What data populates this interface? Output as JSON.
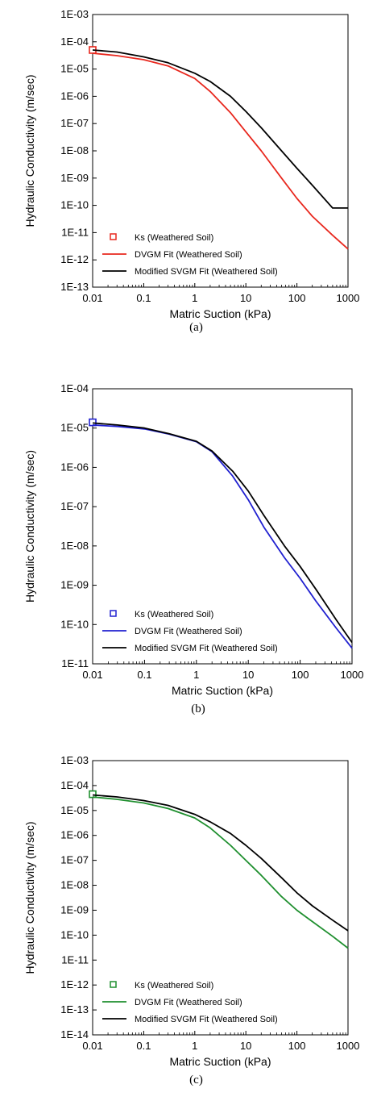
{
  "chart_data": [
    {
      "type": "line",
      "panel_label": "(a)",
      "xlabel": "Matric Suction (kPa)",
      "ylabel": "Hydraulic Conductivity (m/sec)",
      "xscale": "log",
      "yscale": "log",
      "xlim": [
        0.01,
        1000
      ],
      "ylim": [
        1e-13,
        0.001
      ],
      "x_ticks": [
        0.01,
        0.1,
        1,
        10,
        100,
        1000
      ],
      "x_tick_labels": [
        "0.01",
        "0.1",
        "1",
        "10",
        "100",
        "1000"
      ],
      "y_ticks": [
        1e-13,
        1e-12,
        1e-11,
        1e-10,
        1e-09,
        1e-08,
        1e-07,
        1e-06,
        1e-05,
        0.0001,
        0.001
      ],
      "y_tick_labels": [
        "1E-13",
        "1E-12",
        "1E-11",
        "1E-10",
        "1E-09",
        "1E-08",
        "1E-07",
        "1E-06",
        "1E-05",
        "1E-04",
        "1E-03"
      ],
      "legend_position": "bottom-left",
      "series": [
        {
          "name": "Ks (Weathered Soil)",
          "kind": "marker",
          "color": "#e8281e",
          "x": [
            0.01
          ],
          "y": [
            5e-05
          ]
        },
        {
          "name": "DVGM Fit (Weathered Soil)",
          "kind": "line",
          "color": "#e8281e",
          "x": [
            0.01,
            0.03,
            0.1,
            0.3,
            1,
            2,
            5,
            10,
            20,
            50,
            100,
            200,
            500,
            1000
          ],
          "y": [
            3.8e-05,
            3.1e-05,
            2.2e-05,
            1.3e-05,
            4.5e-06,
            1.5e-06,
            2.5e-07,
            5e-08,
            1e-08,
            1e-09,
            1.8e-10,
            4e-11,
            8e-12,
            2.5e-12
          ]
        },
        {
          "name": "Modified SVGM Fit (Weathered Soil)",
          "kind": "line",
          "color": "#000000",
          "x": [
            0.01,
            0.03,
            0.1,
            0.3,
            1,
            2,
            5,
            10,
            20,
            50,
            100,
            200,
            500,
            1000
          ],
          "y": [
            5e-05,
            4.2e-05,
            2.8e-05,
            1.7e-05,
            7e-06,
            3.5e-06,
            1e-06,
            2.8e-07,
            7e-08,
            1e-08,
            2.3e-09,
            5.5e-10,
            8e-11,
            8e-11
          ]
        }
      ]
    },
    {
      "type": "line",
      "panel_label": "(b)",
      "xlabel": "Matric Suction (kPa)",
      "ylabel": "Hydraulic Conductivity (m/sec)",
      "xscale": "log",
      "yscale": "log",
      "xlim": [
        0.01,
        1000
      ],
      "ylim": [
        1e-11,
        0.0001
      ],
      "x_ticks": [
        0.01,
        0.1,
        1,
        10,
        100,
        1000
      ],
      "x_tick_labels": [
        "0.01",
        "0.1",
        "1",
        "10",
        "100",
        "1000"
      ],
      "y_ticks": [
        1e-11,
        1e-10,
        1e-09,
        1e-08,
        1e-07,
        1e-06,
        1e-05,
        0.0001
      ],
      "y_tick_labels": [
        "1E-11",
        "1E-10",
        "1E-09",
        "1E-08",
        "1E-07",
        "1E-06",
        "1E-05",
        "1E-04"
      ],
      "legend_position": "bottom-left",
      "series": [
        {
          "name": "Ks (Weathered Soil)",
          "kind": "marker",
          "color": "#2020d0",
          "x": [
            0.01
          ],
          "y": [
            1.4e-05
          ]
        },
        {
          "name": "DVGM Fit (Weathered Soil)",
          "kind": "line",
          "color": "#2020d0",
          "x": [
            0.01,
            0.03,
            0.1,
            0.3,
            1,
            2,
            5,
            10,
            20,
            50,
            100,
            200,
            500,
            1000
          ],
          "y": [
            1.2e-05,
            1.1e-05,
            9.5e-06,
            7e-06,
            4.5e-06,
            2.5e-06,
            6e-07,
            1.5e-07,
            3e-08,
            5e-09,
            1.5e-09,
            4e-10,
            8e-11,
            2.5e-11
          ]
        },
        {
          "name": "Modified SVGM Fit (Weathered Soil)",
          "kind": "line",
          "color": "#000000",
          "x": [
            0.01,
            0.03,
            0.1,
            0.3,
            1,
            2,
            5,
            10,
            20,
            50,
            100,
            200,
            500,
            1000
          ],
          "y": [
            1.35e-05,
            1.2e-05,
            1e-05,
            7.2e-06,
            4.6e-06,
            2.6e-06,
            8e-07,
            2.5e-07,
            6e-08,
            1e-08,
            3e-09,
            8e-10,
            1.3e-10,
            3.5e-11
          ]
        }
      ]
    },
    {
      "type": "line",
      "panel_label": "(c)",
      "xlabel": "Matric Suction (kPa)",
      "ylabel": "Hydraulic Conductivity (m/sec)",
      "xscale": "log",
      "yscale": "log",
      "xlim": [
        0.01,
        1000
      ],
      "ylim": [
        1e-14,
        0.001
      ],
      "x_ticks": [
        0.01,
        0.1,
        1,
        10,
        100,
        1000
      ],
      "x_tick_labels": [
        "0.01",
        "0.1",
        "1",
        "10",
        "100",
        "1000"
      ],
      "y_ticks": [
        1e-14,
        1e-13,
        1e-12,
        1e-11,
        1e-10,
        1e-09,
        1e-08,
        1e-07,
        1e-06,
        1e-05,
        0.0001,
        0.001
      ],
      "y_tick_labels": [
        "1E-14",
        "1E-13",
        "1E-12",
        "1E-11",
        "1E-10",
        "1E-09",
        "1E-08",
        "1E-07",
        "1E-06",
        "1E-05",
        "1E-04",
        "1E-03"
      ],
      "legend_position": "bottom-left",
      "series": [
        {
          "name": "Ks (Weathered Soil)",
          "kind": "marker",
          "color": "#1f8f2f",
          "x": [
            0.01
          ],
          "y": [
            4.5e-05
          ]
        },
        {
          "name": "DVGM Fit (Weathered Soil)",
          "kind": "line",
          "color": "#1f8f2f",
          "x": [
            0.01,
            0.03,
            0.1,
            0.3,
            1,
            2,
            5,
            10,
            20,
            50,
            100,
            200,
            500,
            1000
          ],
          "y": [
            3.5e-05,
            2.8e-05,
            2e-05,
            1.2e-05,
            5e-06,
            2e-06,
            4e-07,
            1e-07,
            2.5e-08,
            3.5e-09,
            1e-09,
            3.5e-10,
            9e-11,
            3e-11
          ]
        },
        {
          "name": "Modified SVGM Fit (Weathered Soil)",
          "kind": "line",
          "color": "#000000",
          "x": [
            0.01,
            0.03,
            0.1,
            0.3,
            1,
            2,
            5,
            10,
            20,
            50,
            100,
            200,
            500,
            1000
          ],
          "y": [
            4.2e-05,
            3.5e-05,
            2.5e-05,
            1.6e-05,
            7e-06,
            3.5e-06,
            1.2e-06,
            4e-07,
            1.2e-07,
            2e-08,
            5e-09,
            1.5e-09,
            4e-10,
            1.5e-10
          ]
        }
      ]
    }
  ]
}
